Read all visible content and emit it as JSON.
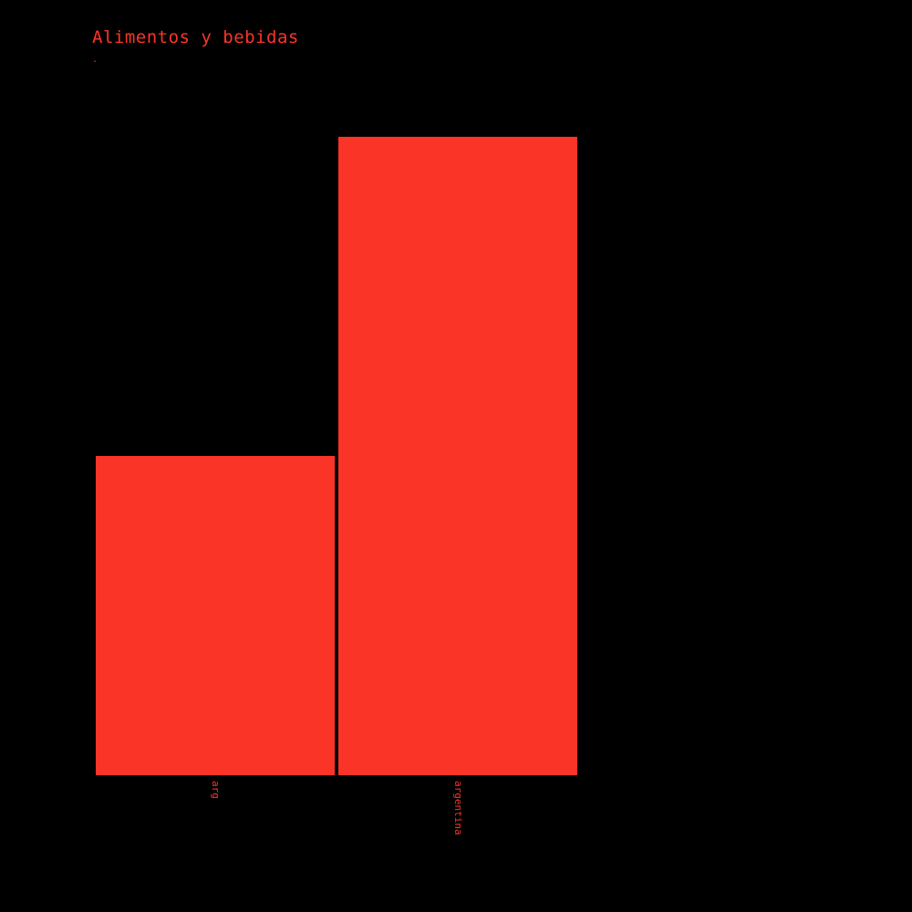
{
  "chart_data": {
    "type": "bar",
    "title": "Alimentos y bebidas",
    "subtitle": ".",
    "categories": [
      "arg",
      "argentina"
    ],
    "values": [
      1,
      2
    ],
    "xlabel": "",
    "ylabel": "",
    "ylim": [
      0,
      2
    ],
    "grid": false,
    "legend": "none",
    "colors": {
      "bar": "#fb3428",
      "text": "#fb3428",
      "background": "#000000"
    }
  }
}
